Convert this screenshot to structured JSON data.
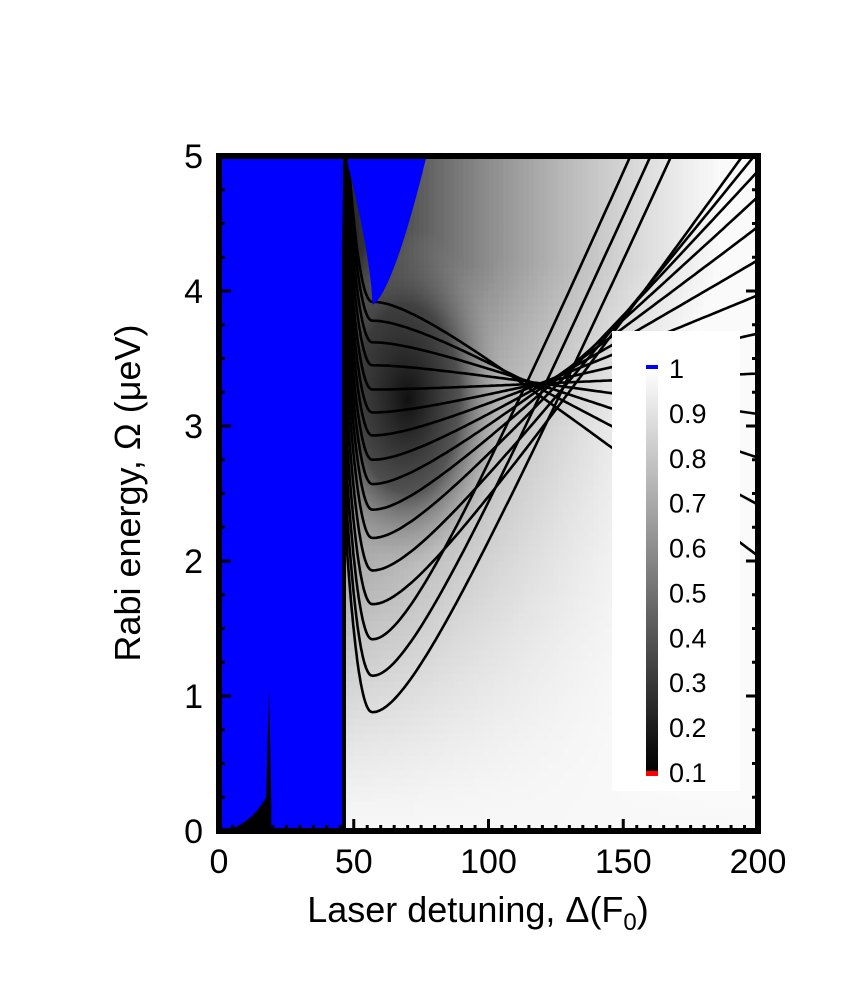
{
  "chart_data": {
    "type": "heatmap",
    "title": "",
    "xlabel": "Laser detuning, Δ(F",
    "xlabel_subscript": "0",
    "xlabel_close": ")",
    "ylabel": "Rabi energy, Ω (μeV)",
    "xlim": [
      0,
      200
    ],
    "ylim": [
      0,
      5
    ],
    "x_ticks": [
      "0",
      "50",
      "100",
      "150",
      "200"
    ],
    "y_ticks": [
      "0",
      "1",
      "2",
      "3",
      "4",
      "5"
    ],
    "colorbar": {
      "ticks": [
        "0.1",
        "0.2",
        "0.3",
        "0.4",
        "0.5",
        "0.6",
        "0.7",
        "0.8",
        "0.9",
        "1"
      ],
      "range": [
        0.1,
        1.0
      ],
      "over_color": "#0000ff",
      "under_color": "#ff0000",
      "legend_placement": "right-inside"
    },
    "regions": [
      {
        "name": "saturated-left",
        "x": [
          0,
          46
        ],
        "y": [
          0,
          5
        ],
        "color": "#0000ff"
      },
      {
        "name": "saturated-top",
        "x": [
          47,
          77
        ],
        "y": [
          3.9,
          5
        ],
        "color": "#0000ff"
      }
    ],
    "contours": {
      "count": 16,
      "minimum_detuning": 57,
      "minimum_rabi_energies": [
        0.88,
        1.15,
        1.42,
        1.68,
        1.93,
        2.17,
        2.38,
        2.57,
        2.75,
        2.93,
        3.1,
        3.27,
        3.45,
        3.62,
        3.78,
        3.92
      ]
    },
    "colors": {
      "axis": "#000000",
      "saturated": "#0000ff",
      "contour": "#000000"
    }
  }
}
